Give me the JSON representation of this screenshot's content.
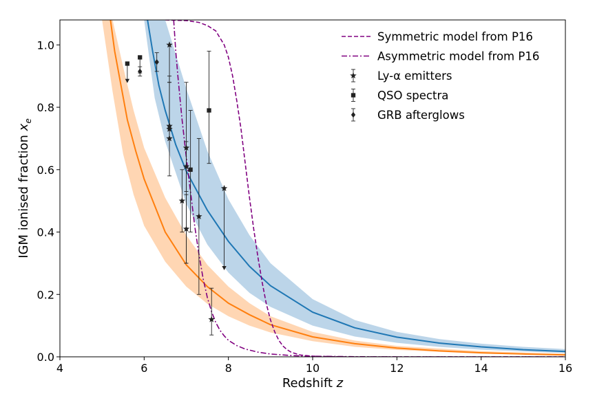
{
  "chart_data": {
    "type": "line",
    "xlabel_text": "Redshift",
    "xlabel_var": "z",
    "ylabel_text": "IGM ionised fraction",
    "ylabel_var": "x",
    "ylabel_sub": "e",
    "xlim": [
      4,
      16
    ],
    "ylim": [
      0,
      1.08
    ],
    "x_ticks": [
      {
        "value": 4,
        "label": "4"
      },
      {
        "value": 6,
        "label": "6"
      },
      {
        "value": 8,
        "label": "8"
      },
      {
        "value": 10,
        "label": "10"
      },
      {
        "value": 12,
        "label": "12"
      },
      {
        "value": 14,
        "label": "14"
      },
      {
        "value": 16,
        "label": "16"
      }
    ],
    "y_ticks": [
      {
        "value": 0.0,
        "label": "0.0"
      },
      {
        "value": 0.2,
        "label": "0.2"
      },
      {
        "value": 0.4,
        "label": "0.4"
      },
      {
        "value": 0.6,
        "label": "0.6"
      },
      {
        "value": 0.8,
        "label": "0.8"
      },
      {
        "value": 1.0,
        "label": "1.0"
      }
    ],
    "grid": false,
    "legend_position": "top-right",
    "bands": [
      {
        "color": "#ffbb80",
        "x": [
          5.0,
          5.25,
          5.5,
          5.75,
          6.0,
          6.5,
          7.0,
          7.5,
          8.0,
          8.5,
          9.0,
          10.0,
          11.0,
          12.0,
          14.0,
          16.0
        ],
        "lower": [
          1.08,
          0.85,
          0.65,
          0.52,
          0.42,
          0.305,
          0.225,
          0.17,
          0.13,
          0.1,
          0.078,
          0.05,
          0.032,
          0.022,
          0.01,
          0.005
        ],
        "upper": [
          1.08,
          1.08,
          0.93,
          0.79,
          0.67,
          0.51,
          0.39,
          0.295,
          0.225,
          0.172,
          0.13,
          0.08,
          0.052,
          0.035,
          0.018,
          0.01
        ]
      },
      {
        "color": "#8fb9db",
        "x": [
          5.6,
          6.0,
          6.25,
          6.5,
          7.0,
          7.5,
          8.0,
          8.5,
          9.0,
          10.0,
          11.0,
          12.0,
          13.0,
          14.0,
          15.0,
          16.0
        ],
        "lower": [
          1.08,
          1.08,
          0.83,
          0.69,
          0.49,
          0.36,
          0.27,
          0.205,
          0.16,
          0.1,
          0.065,
          0.045,
          0.032,
          0.023,
          0.017,
          0.012
        ],
        "upper": [
          1.08,
          1.08,
          1.08,
          1.08,
          0.86,
          0.66,
          0.505,
          0.39,
          0.3,
          0.185,
          0.118,
          0.08,
          0.057,
          0.042,
          0.032,
          0.025
        ]
      }
    ],
    "series": [
      {
        "color": "#ff7f0e",
        "style": "solid",
        "x": [
          5.2,
          5.3,
          5.45,
          5.6,
          5.8,
          6.0,
          6.5,
          7.0,
          7.5,
          8.0,
          8.5,
          9.0,
          10.0,
          11.0,
          12.0,
          13.0,
          14.0,
          15.0,
          16.0
        ],
        "y": [
          1.08,
          0.98,
          0.87,
          0.76,
          0.66,
          0.57,
          0.4,
          0.295,
          0.225,
          0.172,
          0.135,
          0.103,
          0.064,
          0.042,
          0.028,
          0.019,
          0.013,
          0.009,
          0.006
        ]
      },
      {
        "color": "#1f77b4",
        "style": "solid",
        "x": [
          6.08,
          6.2,
          6.35,
          6.5,
          6.75,
          7.0,
          7.5,
          8.0,
          8.5,
          9.0,
          10.0,
          11.0,
          12.0,
          13.0,
          14.0,
          15.0,
          16.0
        ],
        "y": [
          1.08,
          0.98,
          0.87,
          0.79,
          0.68,
          0.595,
          0.47,
          0.37,
          0.29,
          0.228,
          0.143,
          0.093,
          0.063,
          0.044,
          0.032,
          0.023,
          0.017
        ]
      },
      {
        "name": "Symmetric model from P16",
        "color": "#800080",
        "style": "dashed",
        "x": [
          6.5,
          7.0,
          7.3,
          7.5,
          7.7,
          7.9,
          8.0,
          8.1,
          8.2,
          8.3,
          8.4,
          8.5,
          8.6,
          8.7,
          8.8,
          8.9,
          9.0,
          9.1,
          9.2,
          9.3,
          9.4,
          9.5,
          9.7,
          10.0,
          10.5,
          11.0,
          12.0,
          16.0
        ],
        "y": [
          1.08,
          1.078,
          1.072,
          1.062,
          1.045,
          1.0,
          0.96,
          0.9,
          0.82,
          0.73,
          0.62,
          0.51,
          0.41,
          0.32,
          0.24,
          0.17,
          0.118,
          0.08,
          0.052,
          0.034,
          0.022,
          0.014,
          0.006,
          0.002,
          0.0005,
          0.0,
          0.0,
          0.0
        ]
      },
      {
        "name": "Asymmetric model from P16",
        "color": "#800080",
        "style": "dashdot",
        "x": [
          6.7,
          6.75,
          6.8,
          6.85,
          6.9,
          7.0,
          7.1,
          7.2,
          7.3,
          7.4,
          7.5,
          7.6,
          7.7,
          7.8,
          7.9,
          8.0,
          8.2,
          8.4,
          8.7,
          9.0,
          9.5,
          10.0,
          11.0,
          12.0,
          16.0
        ],
        "y": [
          1.08,
          0.98,
          0.9,
          0.83,
          0.76,
          0.64,
          0.53,
          0.42,
          0.33,
          0.25,
          0.19,
          0.145,
          0.11,
          0.085,
          0.067,
          0.053,
          0.036,
          0.025,
          0.015,
          0.009,
          0.004,
          0.002,
          0.0005,
          0.0,
          0.0
        ]
      }
    ],
    "observations": [
      {
        "name": "Ly-α emitters",
        "legend_marker": "star",
        "points": [
          {
            "x": 6.6,
            "y": 1.0,
            "yerr_minus": 0.12,
            "yerr_plus": 0.0,
            "limit": "none"
          },
          {
            "x": 6.6,
            "y": 0.73,
            "yerr_minus": 0.15,
            "yerr_plus": 0.15,
            "limit": "none"
          },
          {
            "x": 6.6,
            "y": 0.7,
            "yerr_minus": 0.0,
            "yerr_plus": 0.2,
            "limit": "none"
          },
          {
            "x": 6.6,
            "y": 0.74,
            "yerr_minus": 0.0,
            "yerr_plus": 0.0,
            "limit": "upper",
            "limit_to": 0.73
          },
          {
            "x": 6.9,
            "y": 0.5,
            "yerr_minus": 0.1,
            "yerr_plus": 0.1,
            "limit": "none"
          },
          {
            "x": 7.0,
            "y": 0.67,
            "yerr_minus": 0.37,
            "yerr_plus": 0.21,
            "limit": "none"
          },
          {
            "x": 7.0,
            "y": 0.61,
            "yerr_minus": 0.08,
            "yerr_plus": 0.08,
            "limit": "none"
          },
          {
            "x": 7.0,
            "y": 0.41,
            "yerr_minus": 0.11,
            "yerr_plus": 0.11,
            "limit": "none"
          },
          {
            "x": 7.3,
            "y": 0.45,
            "yerr_minus": 0.25,
            "yerr_plus": 0.25,
            "limit": "none"
          },
          {
            "x": 7.6,
            "y": 0.12,
            "yerr_minus": 0.05,
            "yerr_plus": 0.1,
            "limit": "none"
          },
          {
            "x": 7.9,
            "y": 0.54,
            "yerr_minus": 0.0,
            "yerr_plus": 0.0,
            "limit": "upper",
            "limit_to": 0.28
          }
        ]
      },
      {
        "name": "QSO spectra",
        "legend_marker": "square",
        "points": [
          {
            "x": 5.6,
            "y": 0.94,
            "yerr_minus": 0.0,
            "yerr_plus": 0.0,
            "limit": "upper",
            "limit_to": 0.88
          },
          {
            "x": 5.9,
            "y": 0.96,
            "yerr_minus": 0.05,
            "yerr_plus": 0.0,
            "limit": "none"
          },
          {
            "x": 7.1,
            "y": 0.6,
            "yerr_minus": 0.2,
            "yerr_plus": 0.19,
            "limit": "none"
          },
          {
            "x": 7.54,
            "y": 0.79,
            "yerr_minus": 0.17,
            "yerr_plus": 0.19,
            "limit": "none"
          }
        ]
      },
      {
        "name": "GRB afterglows",
        "legend_marker": "diamond",
        "points": [
          {
            "x": 5.9,
            "y": 0.915,
            "yerr_minus": 0.015,
            "yerr_plus": 0.015,
            "limit": "none"
          },
          {
            "x": 6.3,
            "y": 0.945,
            "yerr_minus": 0.03,
            "yerr_plus": 0.03,
            "limit": "none"
          }
        ]
      }
    ]
  }
}
